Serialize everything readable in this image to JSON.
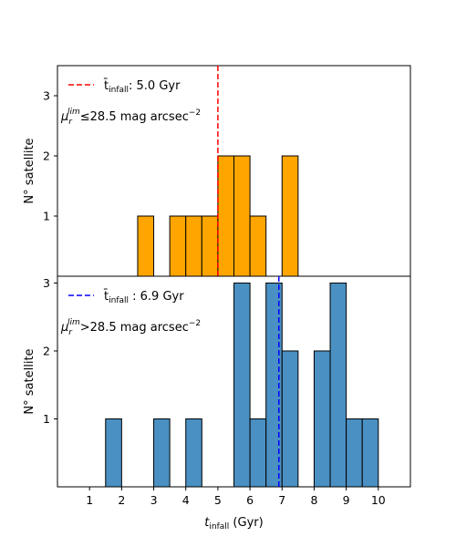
{
  "chart_data": [
    {
      "type": "bar",
      "panel": "top",
      "bin_width": 0.5,
      "bins": [
        {
          "x": 2.75,
          "y": 1
        },
        {
          "x": 3.75,
          "y": 1
        },
        {
          "x": 4.25,
          "y": 1
        },
        {
          "x": 4.75,
          "y": 1
        },
        {
          "x": 5.25,
          "y": 2
        },
        {
          "x": 5.75,
          "y": 2
        },
        {
          "x": 6.25,
          "y": 1
        },
        {
          "x": 7.25,
          "y": 2
        }
      ],
      "bar_color": "#FFA500",
      "edge_color": "#000000",
      "baseline": {
        "x0": 0.5,
        "x1": 10.5
      },
      "mean_line": {
        "x": 5.0,
        "color": "#FF0000",
        "style": "dashed"
      },
      "legend_label_parts": {
        "t": "t̄",
        "sub": "infall",
        "value": ": 5.0 Gyr"
      },
      "annotation_parts": {
        "pre": "μ",
        "sub": "r",
        "sup": "lim",
        "rest": "≤28.5 mag arcsec",
        "exp": "−2"
      },
      "ylabel": "N° satellite",
      "yticks": [
        "1",
        "2",
        "3"
      ],
      "ylim": [
        0,
        3.5
      ]
    },
    {
      "type": "bar",
      "panel": "bottom",
      "bin_width": 0.5,
      "bins": [
        {
          "x": 1.75,
          "y": 1
        },
        {
          "x": 3.25,
          "y": 1
        },
        {
          "x": 4.25,
          "y": 1
        },
        {
          "x": 5.75,
          "y": 3
        },
        {
          "x": 6.25,
          "y": 1
        },
        {
          "x": 6.75,
          "y": 3
        },
        {
          "x": 7.25,
          "y": 2
        },
        {
          "x": 8.25,
          "y": 2
        },
        {
          "x": 8.75,
          "y": 3
        },
        {
          "x": 9.25,
          "y": 1
        },
        {
          "x": 9.75,
          "y": 1
        }
      ],
      "bar_color": "#4A90C2",
      "edge_color": "#000000",
      "mean_line": {
        "x": 6.9,
        "color": "#0000FF",
        "style": "dashed"
      },
      "legend_label_parts": {
        "t": "t̄",
        "sub": "infall",
        "value": " : 6.9 Gyr"
      },
      "annotation_parts": {
        "pre": "μ",
        "sub": "r",
        "sup": "lim",
        "rest": ">28.5 mag arcsec",
        "exp": "−2"
      },
      "ylabel": "N° satellite",
      "yticks": [
        "1",
        "2",
        "3"
      ],
      "ylim": [
        0,
        3.1
      ],
      "xlabel_parts": {
        "t": "t",
        "sub": "infall",
        "rest": " (Gyr)"
      },
      "xticks": [
        "1",
        "2",
        "3",
        "4",
        "5",
        "6",
        "7",
        "8",
        "9",
        "10"
      ],
      "xlim": [
        0,
        11
      ]
    }
  ]
}
